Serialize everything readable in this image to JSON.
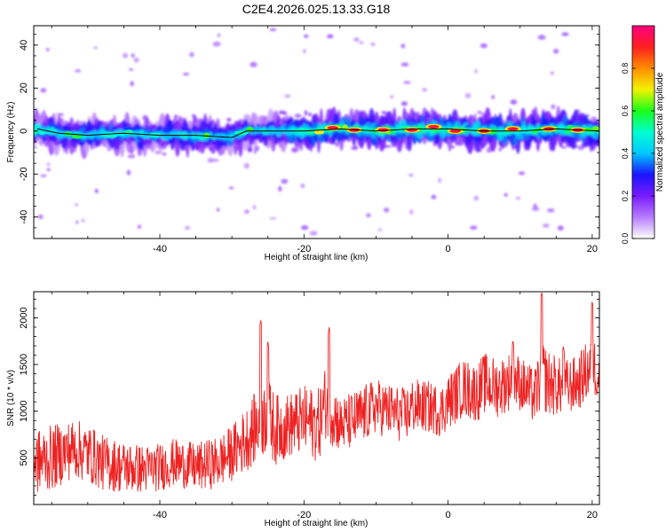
{
  "figure": {
    "title": "C2E4.2026.025.13.33.G18"
  },
  "chart_data": [
    {
      "type": "heatmap",
      "name": "spectrogram",
      "xlabel": "Height of straight line (km)",
      "ylabel": "Frequency (Hz)",
      "xlim": [
        -57.5,
        21
      ],
      "ylim": [
        -50,
        49
      ],
      "xticks": [
        -40,
        -20,
        0,
        20
      ],
      "yticks": [
        -40,
        -20,
        0,
        20,
        40
      ],
      "colorbar": {
        "label": "Normalized spectral amplitude",
        "range": [
          0,
          1
        ],
        "ticks": [
          0.0,
          0.2,
          0.4,
          0.6,
          0.8
        ],
        "stops": [
          "#ffffff",
          "#b77cff",
          "#7a1cff",
          "#1a14ff",
          "#00c8ff",
          "#00ffd0",
          "#1aff1a",
          "#f2f200",
          "#ff8c00",
          "#ff1f1f",
          "#ff0080"
        ]
      },
      "ridge": [
        [
          -57,
          1
        ],
        [
          -54,
          -1
        ],
        [
          -50,
          -2
        ],
        [
          -45,
          -1
        ],
        [
          -40,
          -2
        ],
        [
          -35,
          -2
        ],
        [
          -30,
          -3
        ],
        [
          -28,
          0
        ],
        [
          -25,
          0
        ],
        [
          -20,
          0
        ],
        [
          -15,
          1
        ],
        [
          -10,
          0
        ],
        [
          -5,
          1
        ],
        [
          0,
          1
        ],
        [
          5,
          0
        ],
        [
          10,
          0
        ],
        [
          15,
          1
        ],
        [
          21,
          0
        ]
      ],
      "hotspots": [
        [
          -16,
          1.5
        ],
        [
          -13,
          0.5
        ],
        [
          -9,
          0.5
        ],
        [
          -5,
          0.5
        ],
        [
          -2,
          2
        ],
        [
          1,
          0
        ],
        [
          5,
          0
        ],
        [
          9,
          1
        ],
        [
          14,
          1
        ],
        [
          18,
          0.5
        ]
      ]
    },
    {
      "type": "line",
      "name": "snr",
      "xlabel": "Height of straight line (km)",
      "ylabel": "SNR (10 * v/v)",
      "xlim": [
        -57.5,
        21
      ],
      "ylim": [
        0,
        2280
      ],
      "xticks": [
        -40,
        -20,
        0,
        20
      ],
      "yticks": [
        500,
        1000,
        1500,
        2000
      ],
      "color": "#ee2222",
      "series": [
        {
          "name": "SNR",
          "x": [
            -57.5,
            -55,
            -52,
            -50,
            -48,
            -45,
            -42,
            -40,
            -38,
            -35,
            -32,
            -30,
            -28,
            -26,
            -25,
            -24,
            -22,
            -20,
            -18,
            -17,
            -16,
            -15,
            -13,
            -12,
            -10,
            -8,
            -6,
            -5,
            -3,
            -1,
            0,
            2,
            4,
            5,
            7,
            9,
            10,
            12,
            13,
            14,
            16,
            18,
            19,
            20,
            21
          ],
          "values": [
            450,
            500,
            600,
            550,
            450,
            400,
            380,
            400,
            450,
            400,
            450,
            550,
            700,
            900,
            950,
            800,
            850,
            900,
            850,
            1100,
            1000,
            850,
            900,
            950,
            1050,
            1000,
            950,
            1050,
            1050,
            1000,
            1100,
            1250,
            1200,
            1300,
            1250,
            1350,
            1300,
            1150,
            1400,
            1300,
            1250,
            1300,
            1400,
            1500,
            1400
          ],
          "noise_amp": [
            350,
            350,
            320,
            320,
            300,
            280,
            260,
            260,
            260,
            260,
            280,
            300,
            350,
            400,
            420,
            380,
            350,
            380,
            400,
            400,
            380,
            300,
            320,
            320,
            300,
            300,
            300,
            300,
            280,
            280,
            300,
            320,
            320,
            330,
            320,
            320,
            300,
            300,
            380,
            360,
            300,
            300,
            320,
            350,
            300
          ],
          "peaks": [
            [
              -26,
              1980
            ],
            [
              -25,
              1750
            ],
            [
              -16.5,
              1900
            ],
            [
              9,
              1760
            ],
            [
              13,
              2280
            ],
            [
              16,
              1700
            ],
            [
              20,
              2180
            ]
          ]
        }
      ]
    }
  ]
}
